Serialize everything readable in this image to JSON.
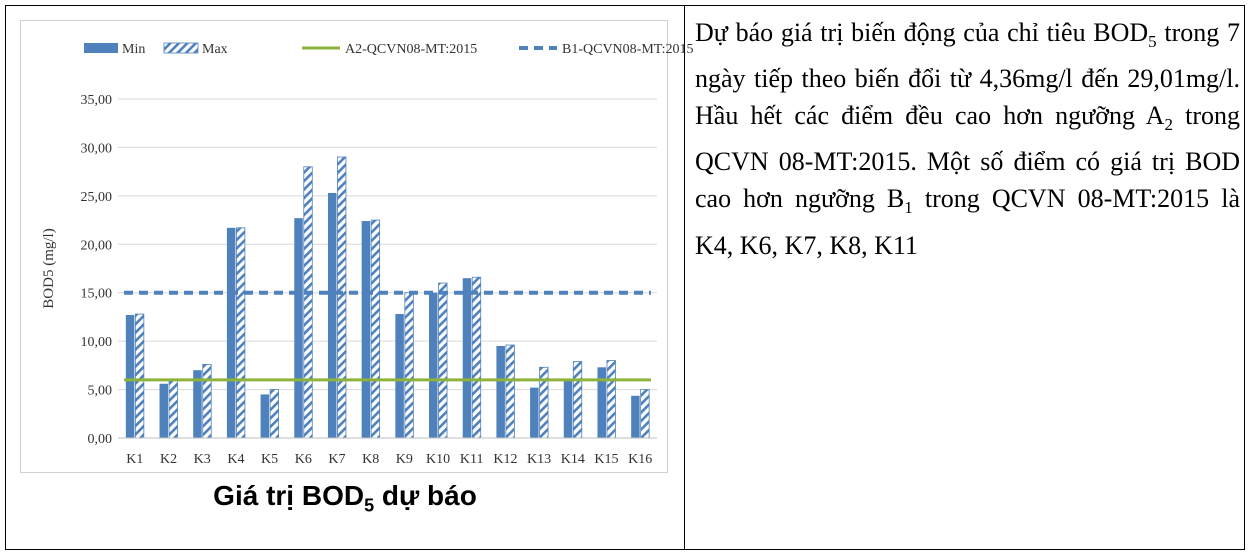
{
  "caption": {
    "main": "Giá trị BOD",
    "sub": "5",
    "tail": " dự báo"
  },
  "description": {
    "p1": "Dự báo giá trị biến động của chỉ tiêu BOD",
    "s1": "5",
    "p2": " trong 7 ngày tiếp theo biến đổi từ 4,36mg/l đến 29,01mg/l. Hầu hết các điểm đều cao hơn ngưỡng A",
    "s2": "2",
    "p3": " trong QCVN 08-MT:2015. Một số điểm có giá trị BOD cao hơn ngưỡng B",
    "s3": "1",
    "p4": " trong QCVN 08-MT:2015 là K4, K6, K7, K8, K11"
  },
  "chart_data": {
    "type": "bar",
    "ylabel": "BOD5 (mg/l)",
    "ylim": [
      0,
      35
    ],
    "yticks": [
      "0,00",
      "5,00",
      "10,00",
      "15,00",
      "20,00",
      "25,00",
      "30,00",
      "35,00"
    ],
    "categories": [
      "K1",
      "K2",
      "K3",
      "K4",
      "K5",
      "K6",
      "K7",
      "K8",
      "K9",
      "K10",
      "K11",
      "K12",
      "K13",
      "K14",
      "K15",
      "K16"
    ],
    "series": [
      {
        "name": "Min",
        "style": "solid",
        "values": [
          12.7,
          5.6,
          7.0,
          21.7,
          4.5,
          22.7,
          25.3,
          22.4,
          12.8,
          15.0,
          16.5,
          9.5,
          5.2,
          6.0,
          7.3,
          4.36
        ]
      },
      {
        "name": "Max",
        "style": "hatched",
        "values": [
          12.8,
          6.0,
          7.6,
          21.7,
          5.0,
          28.0,
          29.01,
          22.5,
          15.0,
          16.0,
          16.6,
          9.6,
          7.3,
          7.9,
          8.0,
          5.0
        ]
      }
    ],
    "reference_lines": [
      {
        "name": "A2-QCVN08-MT:2015",
        "value": 6.0,
        "style": "solid",
        "color": "#8db33a"
      },
      {
        "name": "B1-QCVN08-MT:2015",
        "value": 15.0,
        "style": "dashed",
        "color": "#4f81bd"
      }
    ],
    "colors": {
      "bar": "#4f81bd",
      "grid": "#d9d9d9"
    },
    "legend_position": "top",
    "grid": true
  }
}
